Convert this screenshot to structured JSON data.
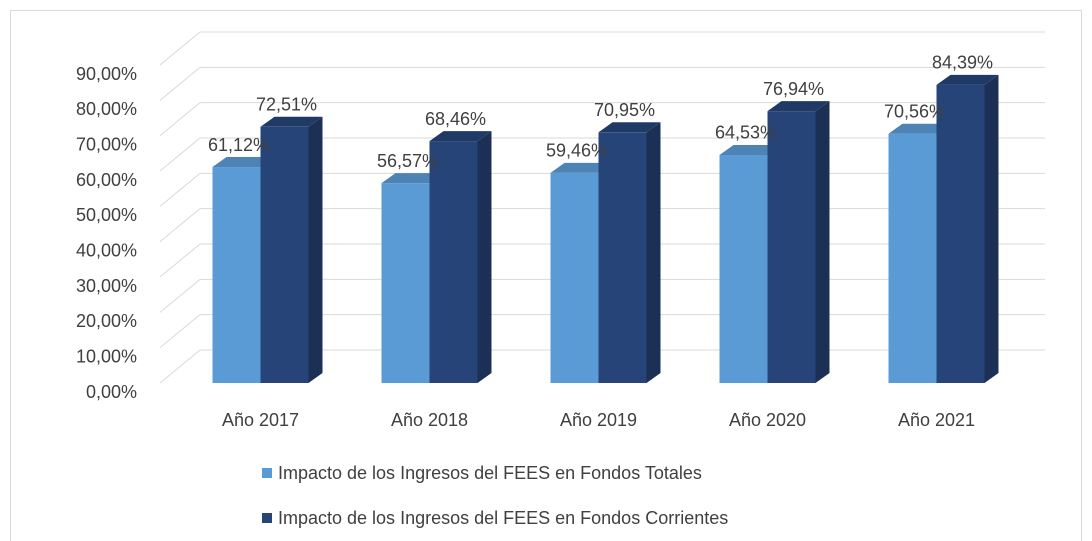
{
  "chart_data": {
    "type": "bar3d",
    "categories": [
      "Año 2017",
      "Año 2018",
      "Año 2019",
      "Año 2020",
      "Año 2021"
    ],
    "series": [
      {
        "name": "Impacto de los Ingresos del FEES en Fondos Totales",
        "color": "#5b9bd5",
        "values": [
          61.12,
          56.57,
          59.46,
          64.53,
          70.56
        ],
        "value_labels": [
          "61,12%",
          "56,57%",
          "59,46%",
          "64,53%",
          "70,56%"
        ]
      },
      {
        "name": "Impacto de los Ingresos del FEES en Fondos Corrientes",
        "color": "#264478",
        "values": [
          72.51,
          68.46,
          70.95,
          76.94,
          84.39
        ],
        "value_labels": [
          "72,51%",
          "68,46%",
          "70,95%",
          "76,94%",
          "84,39%"
        ]
      }
    ],
    "ylim": [
      0,
      90
    ],
    "yticks": [
      {
        "value": 0,
        "label": "0,00%"
      },
      {
        "value": 10,
        "label": "10,00%"
      },
      {
        "value": 20,
        "label": "20,00%"
      },
      {
        "value": 30,
        "label": "30,00%"
      },
      {
        "value": 40,
        "label": "40,00%"
      },
      {
        "value": 50,
        "label": "50,00%"
      },
      {
        "value": 60,
        "label": "60,00%"
      },
      {
        "value": 70,
        "label": "70,00%"
      },
      {
        "value": 80,
        "label": "80,00%"
      },
      {
        "value": 90,
        "label": "90,00%"
      }
    ],
    "grid": true,
    "legend": "bottom"
  }
}
